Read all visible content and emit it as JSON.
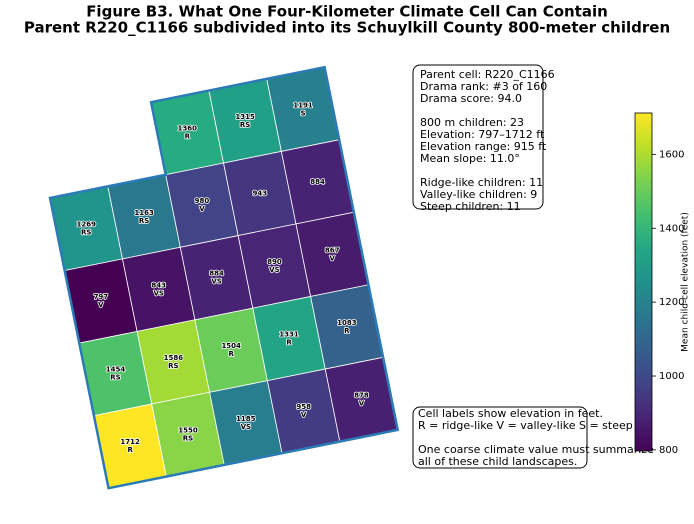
{
  "chart_data": {
    "type": "grid-map",
    "title": "Figure B3. What One Four-Kilometer Climate Cell Can Contain",
    "subtitle": "Parent R220_C1166 subdivided into its Schuylkill County 800-meter children",
    "colormap": "viridis",
    "rows": [
      {
        "values": [
          null,
          null,
          1360,
          1315,
          1191
        ],
        "labels": [
          null,
          null,
          "R",
          "RS",
          "S"
        ]
      },
      {
        "values": [
          1269,
          1163,
          980,
          943,
          884
        ],
        "labels": [
          "RS",
          "RS",
          "V",
          null,
          null
        ]
      },
      {
        "values": [
          797,
          843,
          884,
          890,
          867
        ],
        "labels": [
          "V",
          "VS",
          "VS",
          "VS",
          "V"
        ]
      },
      {
        "values": [
          1454,
          1586,
          1504,
          1331,
          1083
        ],
        "labels": [
          "RS",
          "RS",
          "R",
          "R",
          "R"
        ]
      },
      {
        "values": [
          1712,
          1550,
          1185,
          958,
          878
        ],
        "labels": [
          "R",
          "RS",
          "VS",
          "V",
          "V"
        ]
      }
    ],
    "clim": [
      797,
      1712
    ],
    "cticks": [
      800,
      1000,
      1200,
      1400,
      1600
    ],
    "colorbar_label": "Mean child-cell elevation (feet)",
    "info": [
      [
        "Parent cell: R220_C1166",
        "Drama rank: #3 of 160",
        "Drama score: 94.0"
      ],
      [
        "800 m children: 23",
        "Elevation: 797–1712 ft",
        "Elevation range: 915 ft",
        "Mean slope: 11.0°"
      ],
      [
        "Ridge-like children: 11",
        "Valley-like children: 9",
        "Steep children: 11"
      ]
    ],
    "note": [
      [
        "Cell labels show elevation in feet.",
        "R = ridge-like   V = valley-like   S = steep"
      ],
      [
        "One coarse climate value must summarize",
        "all of these child landscapes."
      ]
    ]
  }
}
